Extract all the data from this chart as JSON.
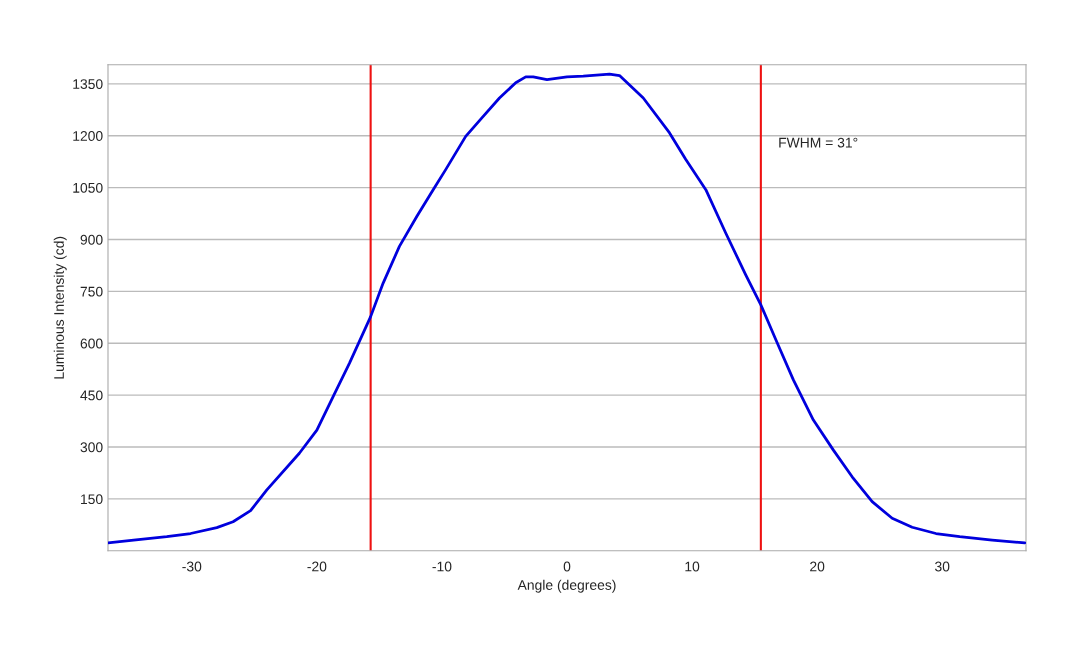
{
  "chart_data": {
    "type": "line",
    "xlabel": "Angle (degrees)",
    "ylabel": "Luminous Intensity (cd)",
    "x": [
      -36.7,
      -34.65,
      -32.0,
      -30.1,
      -28.0,
      -26.7,
      -25.3,
      -24.0,
      -21.4,
      -20.0,
      -18.7,
      -17.4,
      -15.7,
      -14.7,
      -13.4,
      -12.0,
      -10.7,
      -9.7,
      -8.1,
      -6.7,
      -5.4,
      -4.1,
      -3.3,
      -2.7,
      -1.6,
      0,
      1.3,
      3.4,
      4.2,
      6.1,
      8.2,
      9.5,
      11.1,
      12.7,
      14.3,
      15.5,
      16.7,
      18.1,
      19.7,
      21.3,
      22.8,
      24.4,
      26.0,
      27.6,
      29.5,
      31.4,
      34.0,
      36.6
    ],
    "series": [
      {
        "color": "#0000dd",
        "values": [
          23,
          31,
          41,
          50,
          67,
          84,
          116,
          176,
          282,
          349,
          446,
          542,
          677,
          774,
          880,
          967,
          1044,
          1102,
          1198,
          1256,
          1309,
          1353,
          1370,
          1370,
          1362,
          1370,
          1372,
          1378,
          1374,
          1309,
          1208,
          1131,
          1044,
          918,
          797,
          711,
          610,
          494,
          378,
          291,
          214,
          142,
          94,
          68,
          50,
          41,
          31,
          23
        ]
      }
    ],
    "xlim": [
      -36.7,
      36.7
    ],
    "ylim": [
      0,
      1405
    ],
    "xticks": [
      -30,
      -20,
      -10,
      0,
      10,
      20,
      30
    ],
    "yticks": [
      150,
      300,
      450,
      600,
      750,
      900,
      1050,
      1200,
      1350
    ],
    "grid": "y",
    "legend": false,
    "marker": "none",
    "line_style": "solid",
    "ref_lines": [
      {
        "axis": "x",
        "value": -15.7,
        "color": "#ee1111"
      },
      {
        "axis": "x",
        "value": 15.5,
        "color": "#ee1111"
      }
    ],
    "annotations": [
      "FWHM = 31°"
    ]
  }
}
